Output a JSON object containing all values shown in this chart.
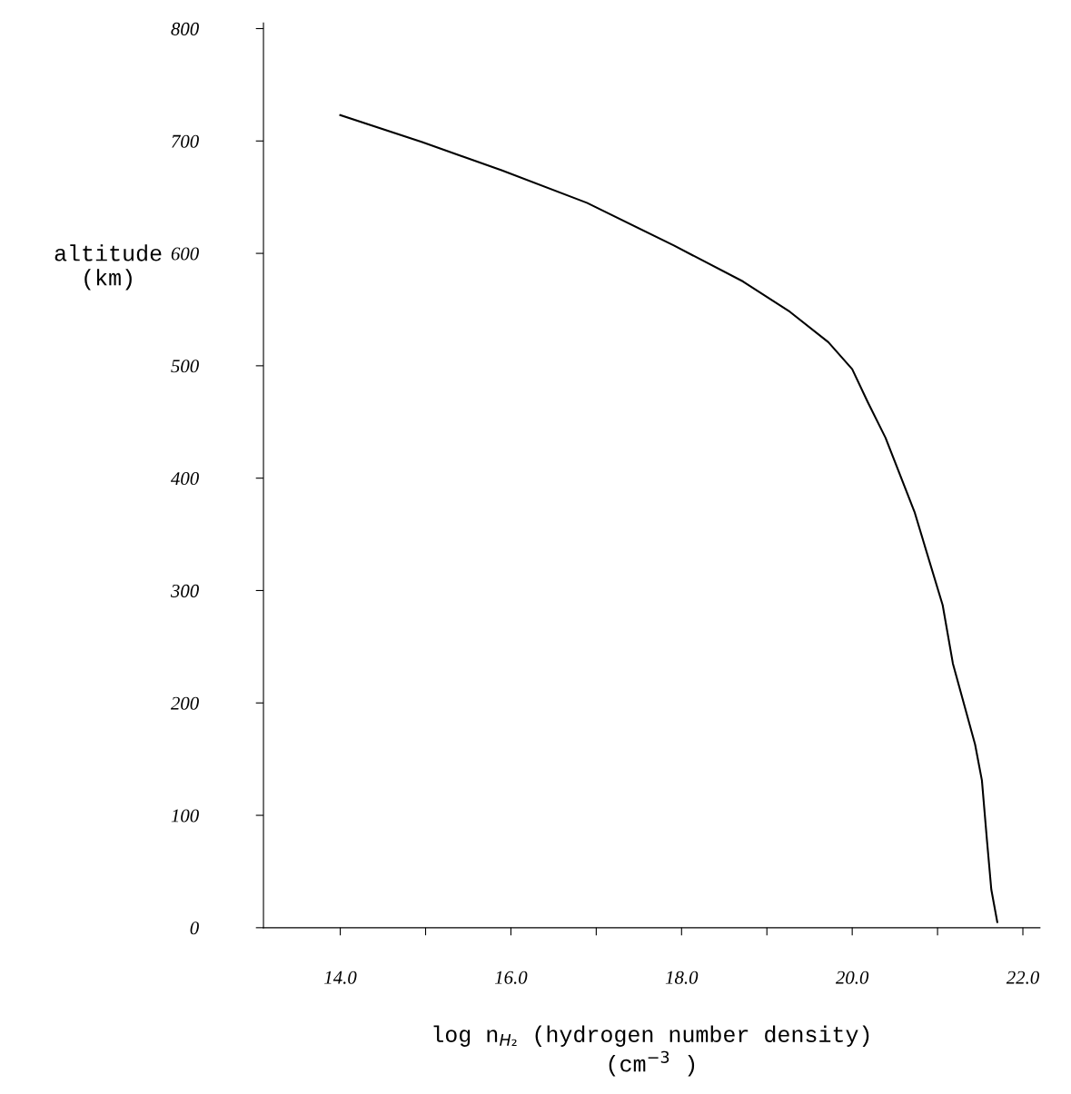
{
  "chart_data": {
    "type": "line",
    "xlabel": "log n$_{H₂}$ (hydrogen number density)\n(cm$^{−3}$ )",
    "ylabel": "altitude\n(km)",
    "x": [
      14.0,
      14.96,
      15.89,
      16.89,
      17.91,
      18.72,
      19.27,
      19.72,
      20.0,
      20.18,
      20.39,
      20.73,
      21.06,
      21.18,
      21.44,
      21.52,
      21.58,
      21.63,
      21.7
    ],
    "series": [
      {
        "color": "#000000",
        "values": [
          723,
          699,
          674,
          645,
          607,
          575,
          548,
          521,
          497,
          468,
          436,
          370,
          287,
          235,
          163,
          131,
          77,
          34,
          5
        ]
      }
    ],
    "xlim": [
      13.1,
      22.2
    ],
    "xticks": [
      {
        "value": 14,
        "label": "14.0"
      },
      {
        "value": 15,
        "label": null
      },
      {
        "value": 16,
        "label": "16.0"
      },
      {
        "value": 17,
        "label": null
      },
      {
        "value": 18,
        "label": "18.0"
      },
      {
        "value": 19,
        "label": null
      },
      {
        "value": 20,
        "label": "20.0"
      },
      {
        "value": 21,
        "label": null
      },
      {
        "value": 22,
        "label": "22.0"
      }
    ],
    "ylim": [
      0,
      805
    ],
    "yticks": [
      0,
      100,
      200,
      300,
      400,
      500,
      600,
      700,
      800
    ],
    "grid": false,
    "legend": false,
    "marker": "none",
    "line_style": "solid"
  }
}
